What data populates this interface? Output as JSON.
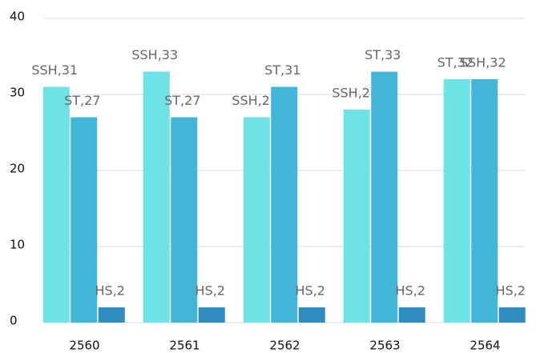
{
  "chart_data": {
    "type": "bar",
    "categories": [
      "2560",
      "2561",
      "2562",
      "2563",
      "2564"
    ],
    "series": [
      {
        "color": "#6de3e8",
        "values": [
          31,
          33,
          27,
          28,
          32
        ],
        "value_labels": [
          "SSH,31",
          "SSH,33",
          "SSH,27",
          "SSH,28",
          "ST,32"
        ]
      },
      {
        "color": "#42b6d6",
        "values": [
          27,
          27,
          31,
          33,
          32
        ],
        "value_labels": [
          "ST,27",
          "ST,27",
          "ST,31",
          "ST,33",
          "SSH,32"
        ]
      },
      {
        "color": "#2e8cbf",
        "values": [
          2,
          2,
          2,
          2,
          2
        ],
        "value_labels": [
          "HS,2",
          "HS,2",
          "HS,2",
          "HS,2",
          "HS,2"
        ]
      }
    ],
    "ylim": [
      0,
      40
    ],
    "yticks": [
      0,
      10,
      20,
      30,
      40
    ],
    "grid": true
  }
}
